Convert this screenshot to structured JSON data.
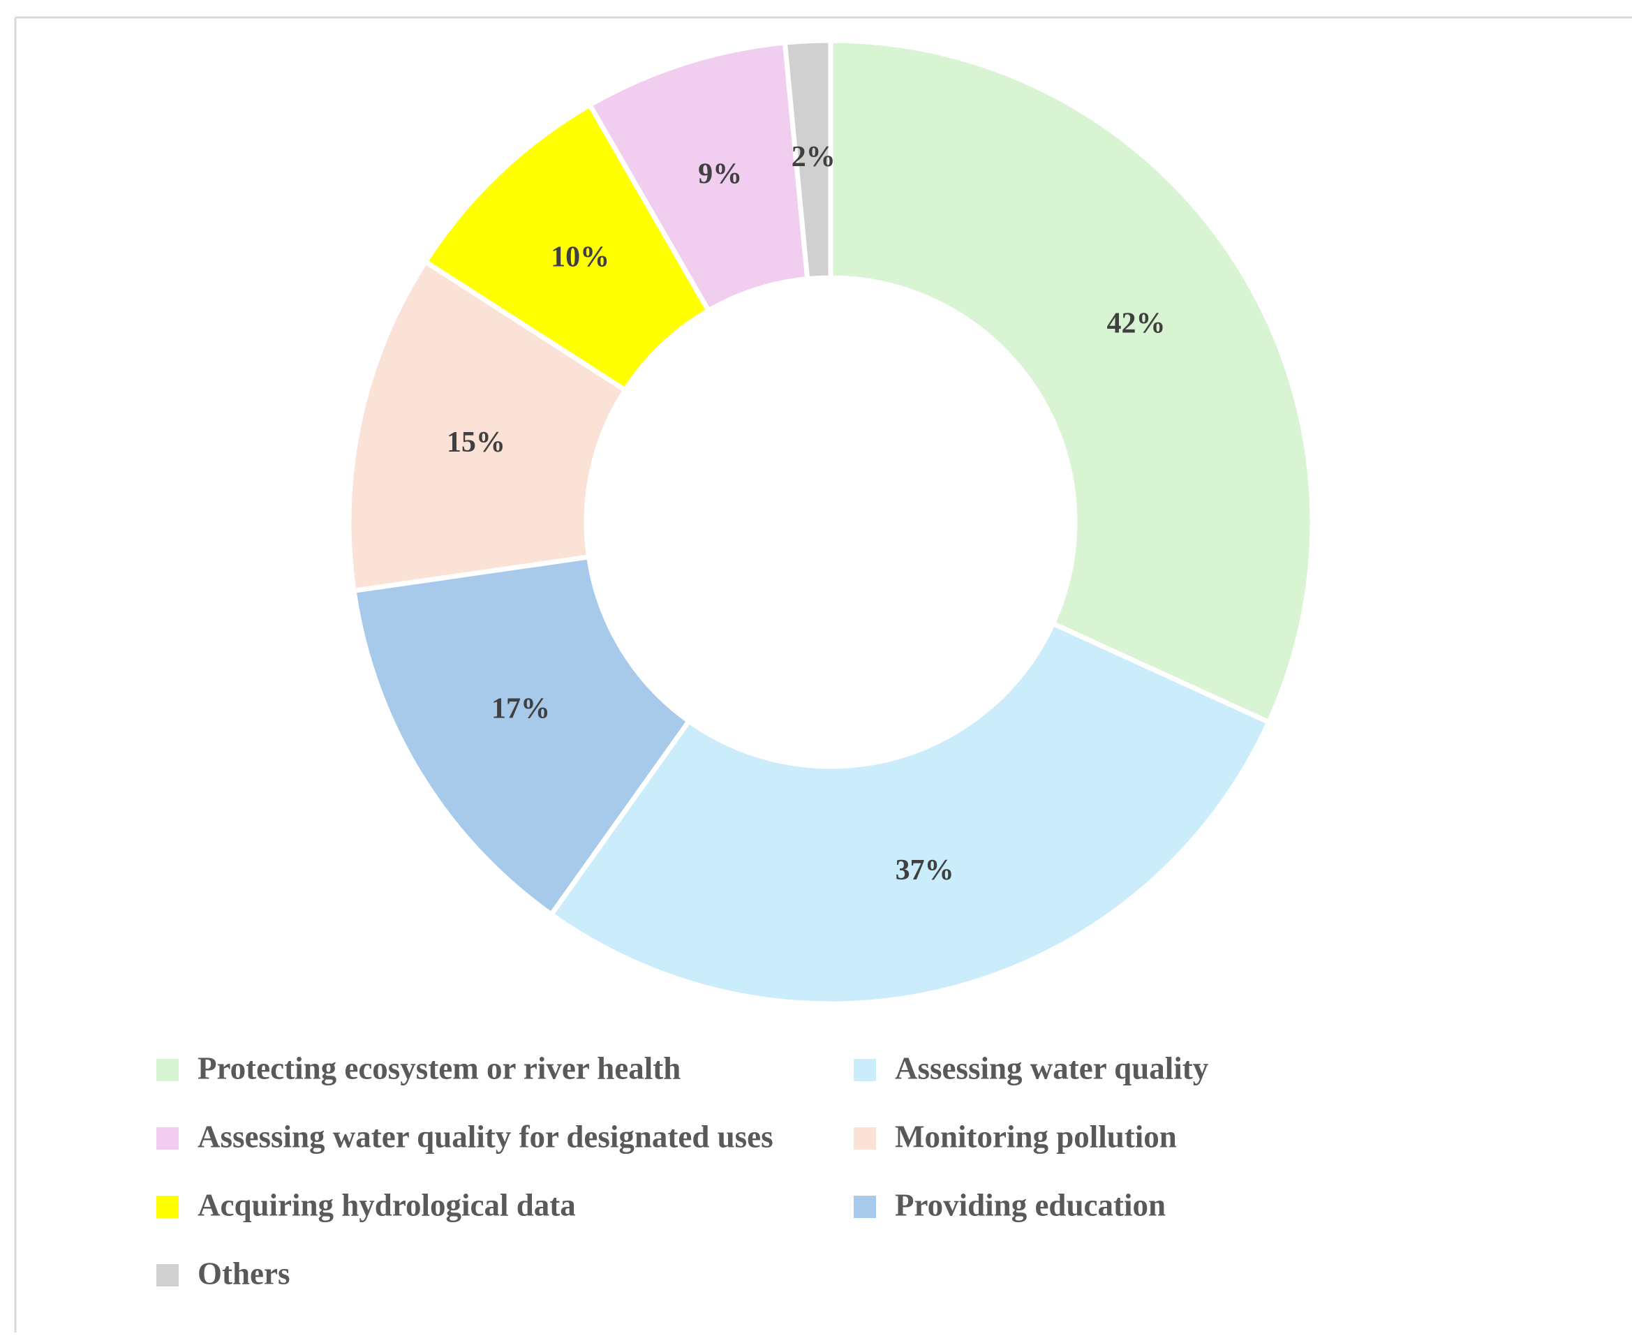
{
  "chart_data": {
    "type": "donut",
    "categories": [
      "Protecting ecosystem or river health",
      "Assessing water quality",
      "Providing education",
      "Monitoring pollution",
      "Acquiring hydrological data",
      "Assessing water quality for designated uses",
      "Others"
    ],
    "values": [
      42,
      37,
      17,
      15,
      10,
      9,
      2
    ],
    "value_labels": [
      "42%",
      "37%",
      "17%",
      "15%",
      "10%",
      "9%",
      "2%"
    ],
    "colors": [
      "#d9f4d2",
      "#cbedfb",
      "#a7caeb",
      "#fbe2d6",
      "#ffff00",
      "#f1cdef",
      "#d0d0d0"
    ],
    "legend": "bottom"
  }
}
